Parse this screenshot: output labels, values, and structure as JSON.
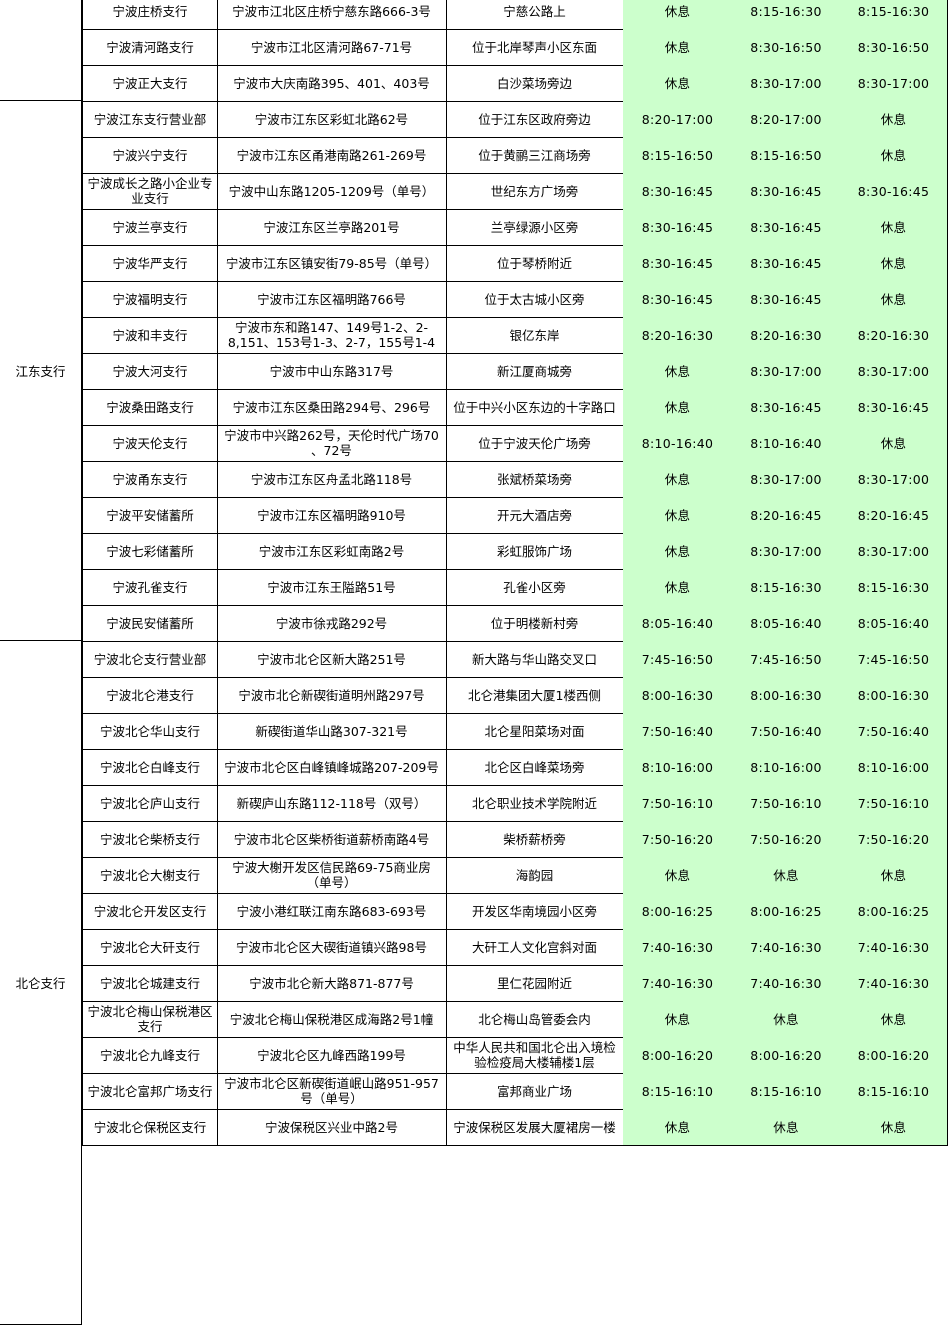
{
  "colors": {
    "hours_bg": "#ccffcc",
    "border": "#000000"
  },
  "groups": [
    {
      "region": "",
      "rows": [
        [
          "宁波庄桥支行",
          "宁波市江北区庄桥宁慈东路666-3号",
          "宁慈公路上",
          "休息",
          "8:15-16:30",
          "8:15-16:30"
        ],
        [
          "宁波清河路支行",
          "宁波市江北区清河路67-71号",
          "位于北岸琴声小区东面",
          "休息",
          "8:30-16:50",
          "8:30-16:50"
        ],
        [
          "宁波正大支行",
          "宁波市大庆南路395、401、403号",
          "白沙菜场旁边",
          "休息",
          "8:30-17:00",
          "8:30-17:00"
        ]
      ]
    },
    {
      "region": "江东支行",
      "rows": [
        [
          "宁波江东支行营业部",
          "宁波市江东区彩虹北路62号",
          "位于江东区政府旁边",
          "8:20-17:00",
          "8:20-17:00",
          "休息"
        ],
        [
          "宁波兴宁支行",
          "宁波市江东区甬港南路261-269号",
          "位于黄鹂三江商场旁",
          "8:15-16:50",
          "8:15-16:50",
          "休息"
        ],
        [
          "宁波成长之路小企业专\n业支行",
          "宁波中山东路1205-1209号（单号）",
          "世纪东方广场旁",
          "8:30-16:45",
          "8:30-16:45",
          "8:30-16:45"
        ],
        [
          "宁波兰亭支行",
          "宁波江东区兰亭路201号",
          "兰亭绿源小区旁",
          "8:30-16:45",
          "8:30-16:45",
          "休息"
        ],
        [
          "宁波华严支行",
          "宁波市江东区镇安街79-85号（单号）",
          "位于琴桥附近",
          "8:30-16:45",
          "8:30-16:45",
          "休息"
        ],
        [
          "宁波福明支行",
          "宁波市江东区福明路766号",
          "位于太古城小区旁",
          "8:30-16:45",
          "8:30-16:45",
          "休息"
        ],
        [
          "宁波和丰支行",
          "宁波市东和路147、149号1-2、2-\n8,151、153号1-3、2-7，155号1-4",
          "银亿东岸",
          "8:20-16:30",
          "8:20-16:30",
          "8:20-16:30"
        ],
        [
          "宁波大河支行",
          "宁波市中山东路317号",
          "新江厦商城旁",
          "休息",
          "8:30-17:00",
          "8:30-17:00"
        ],
        [
          "宁波桑田路支行",
          "宁波市江东区桑田路294号、296号",
          "位于中兴小区东边的十字路口",
          "休息",
          "8:30-16:45",
          "8:30-16:45"
        ],
        [
          "宁波天伦支行",
          "宁波市中兴路262号，天伦时代广场70\n、72号",
          "位于宁波天伦广场旁",
          "8:10-16:40",
          "8:10-16:40",
          "休息"
        ],
        [
          "宁波甬东支行",
          "宁波市江东区舟孟北路118号",
          "张斌桥菜场旁",
          "休息",
          "8:30-17:00",
          "8:30-17:00"
        ],
        [
          "宁波平安储蓄所",
          "宁波市江东区福明路910号",
          "开元大酒店旁",
          "休息",
          "8:20-16:45",
          "8:20-16:45"
        ],
        [
          "宁波七彩储蓄所",
          "宁波市江东区彩虹南路2号",
          "彩虹服饰广场",
          "休息",
          "8:30-17:00",
          "8:30-17:00"
        ],
        [
          "宁波孔雀支行",
          "宁波市江东王隘路51号",
          "孔雀小区旁",
          "休息",
          "8:15-16:30",
          "8:15-16:30"
        ],
        [
          "宁波民安储蓄所",
          "宁波市徐戎路292号",
          "位于明楼新村旁",
          "8:05-16:40",
          "8:05-16:40",
          "8:05-16:40"
        ]
      ]
    },
    {
      "region": "北仑支行",
      "rows": [
        [
          "宁波北仑支行营业部",
          "宁波市北仑区新大路251号",
          "新大路与华山路交叉口",
          "7:45-16:50",
          "7:45-16:50",
          "7:45-16:50"
        ],
        [
          "宁波北仑港支行",
          "宁波市北仑新碶街道明州路297号",
          "北仑港集团大厦1楼西侧",
          "8:00-16:30",
          "8:00-16:30",
          "8:00-16:30"
        ],
        [
          "宁波北仑华山支行",
          "新碶街道华山路307-321号",
          "北仑星阳菜场对面",
          "7:50-16:40",
          "7:50-16:40",
          "7:50-16:40"
        ],
        [
          "宁波北仑白峰支行",
          "宁波市北仑区白峰镇峰城路207-209号",
          "北仑区白峰菜场旁",
          "8:10-16:00",
          "8:10-16:00",
          "8:10-16:00"
        ],
        [
          "宁波北仑庐山支行",
          "新碶庐山东路112-118号（双号）",
          "北仑职业技术学院附近",
          "7:50-16:10",
          "7:50-16:10",
          "7:50-16:10"
        ],
        [
          "宁波北仑柴桥支行",
          "宁波市北仑区柴桥街道薪桥南路4号",
          "柴桥薪桥旁",
          "7:50-16:20",
          "7:50-16:20",
          "7:50-16:20"
        ],
        [
          "宁波北仑大榭支行",
          "宁波大榭开发区信民路69-75商业房\n（单号）",
          "海韵园",
          "休息",
          "休息",
          "休息"
        ],
        [
          "宁波北仑开发区支行",
          "宁波小港红联江南东路683-693号",
          "开发区华南境园小区旁",
          "8:00-16:25",
          "8:00-16:25",
          "8:00-16:25"
        ],
        [
          "宁波北仑大矸支行",
          "宁波市北仑区大碶街道镇兴路98号",
          "大矸工人文化宫斜对面",
          "7:40-16:30",
          "7:40-16:30",
          "7:40-16:30"
        ],
        [
          "宁波北仑城建支行",
          "宁波市北仑新大路871-877号",
          "里仁花园附近",
          "7:40-16:30",
          "7:40-16:30",
          "7:40-16:30"
        ],
        [
          "宁波北仑梅山保税港区\n支行",
          "宁波北仑梅山保税港区成海路2号1幢",
          "北仑梅山岛管委会内",
          "休息",
          "休息",
          "休息"
        ],
        [
          "宁波北仑九峰支行",
          "宁波北仑区九峰西路199号",
          "中华人民共和国北仑出入境检\n验检疫局大楼辅楼1层",
          "8:00-16:20",
          "8:00-16:20",
          "8:00-16:20"
        ],
        [
          "宁波北仑富邦广场支行",
          "宁波市北仑区新碶街道岷山路951-957\n号（单号）",
          "富邦商业广场",
          "8:15-16:10",
          "8:15-16:10",
          "8:15-16:10"
        ],
        [
          "宁波北仑保税区支行",
          "宁波保税区兴业中路2号",
          "宁波保税区发展大厦裙房一楼",
          "休息",
          "休息",
          "休息"
        ]
      ]
    }
  ]
}
